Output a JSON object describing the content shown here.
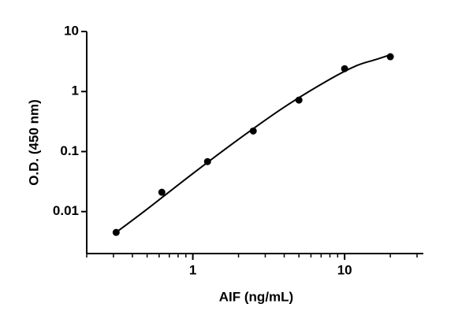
{
  "chart_data": {
    "type": "scatter",
    "x_label": "AIF (ng/mL)",
    "y_label": "O.D. (450 nm)",
    "xscale": "log",
    "yscale": "log",
    "xlim": [
      0.2,
      33
    ],
    "ylim": [
      0.002,
      10
    ],
    "xticks": [
      1,
      10
    ],
    "yticks": [
      0.01,
      0.1,
      1,
      10
    ],
    "xminorticks": [
      0.2,
      0.3,
      0.4,
      0.5,
      0.6,
      0.7,
      0.8,
      0.9,
      2,
      3,
      4,
      5,
      6,
      7,
      8,
      9,
      20,
      30
    ],
    "series": [
      {
        "style": "points",
        "color": "#000000",
        "x": [
          0.3125,
          0.625,
          1.25,
          2.5,
          5,
          10,
          20
        ],
        "values": [
          0.0045,
          0.021,
          0.068,
          0.22,
          0.72,
          2.4,
          3.8
        ]
      },
      {
        "style": "curve",
        "color": "#000000",
        "x": [
          0.3125,
          0.5,
          1,
          2,
          4,
          8,
          12,
          16,
          20
        ],
        "values": [
          0.0045,
          0.011,
          0.043,
          0.16,
          0.55,
          1.6,
          2.7,
          3.4,
          4.1
        ]
      }
    ]
  }
}
